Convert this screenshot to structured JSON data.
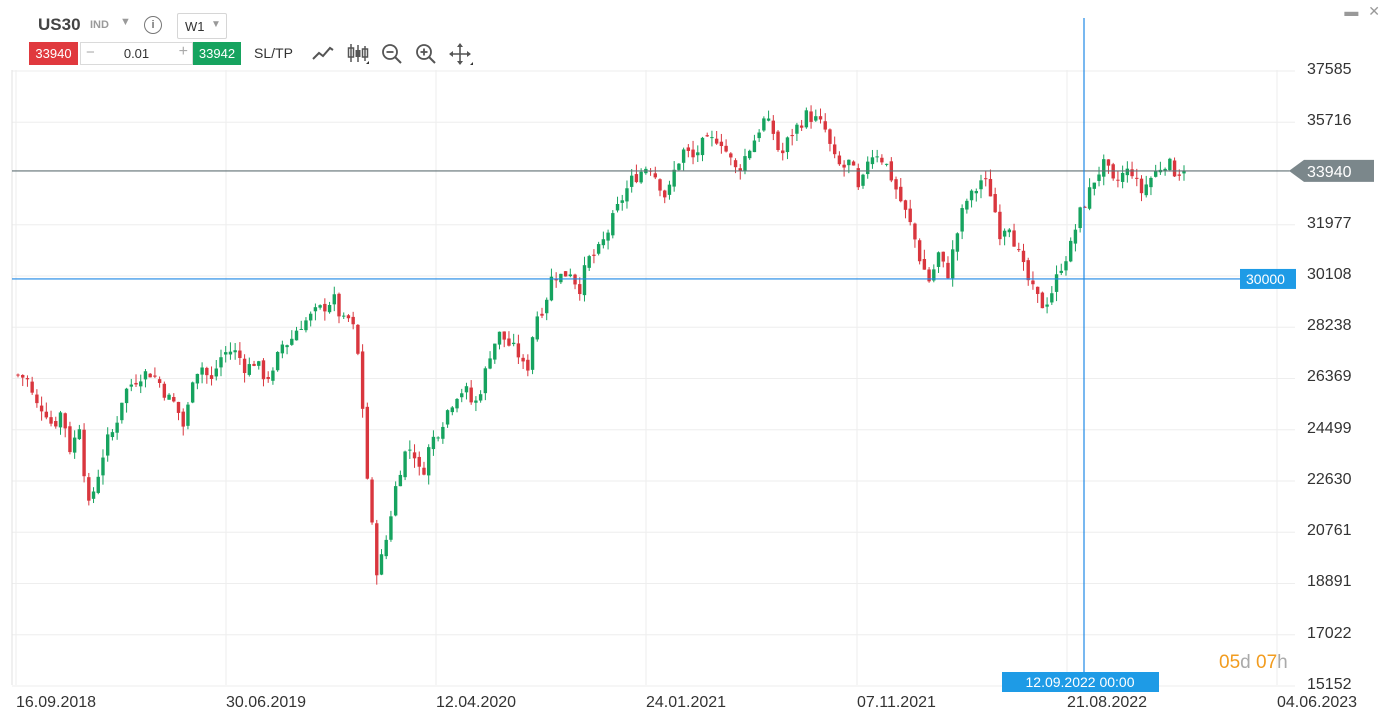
{
  "header": {
    "symbol": "US30",
    "category": "IND",
    "timeframe": "W1",
    "sell_price": "33940",
    "quantity": "0.01",
    "buy_price": "33942",
    "sltp_label": "SL/TP",
    "minus": "−",
    "plus": "+"
  },
  "price_axis": {
    "labels": [
      "37585",
      "35716",
      "31977",
      "30108",
      "28238",
      "26369",
      "24499",
      "22630",
      "20761",
      "18891",
      "17022",
      "15152"
    ],
    "current_price": "33940",
    "hline_price": "30000"
  },
  "date_axis": {
    "labels": [
      "16.09.2018",
      "30.06.2019",
      "12.04.2020",
      "24.01.2021",
      "07.11.2021",
      "21.08.2022",
      "04.06.2023"
    ],
    "crosshair_date": "12.09.2022 00:00"
  },
  "countdown": {
    "days": "05",
    "days_unit": "d",
    "hours": "07",
    "hours_unit": "h"
  },
  "colors": {
    "up": "#16a35f",
    "down": "#d9363e",
    "crosshair": "#1e88e5",
    "price_line": "#607075"
  },
  "chart_data": {
    "type": "candlestick",
    "x_range": [
      "16.09.2018",
      "04.06.2023"
    ],
    "ylim": [
      15152,
      37585
    ],
    "current_price": 33940,
    "horizontal_line": 30000,
    "crosshair_date": "12.09.2022 00:00",
    "close_path": [
      [
        26500,
        26369
      ],
      [
        25400,
        25300
      ],
      [
        24600,
        25200
      ],
      [
        23700,
        24700
      ],
      [
        21600,
        22700
      ],
      [
        24000,
        24500
      ],
      [
        25800,
        26200
      ],
      [
        26500,
        26600
      ],
      [
        26300,
        25700
      ],
      [
        25400,
        24500
      ],
      [
        26600,
        26800
      ],
      [
        26200,
        27100
      ],
      [
        27400,
        27300
      ],
      [
        26700,
        27000
      ],
      [
        26500,
        26400
      ],
      [
        27600,
        27700
      ],
      [
        28300,
        28500
      ],
      [
        28800,
        29000
      ],
      [
        29300,
        28400
      ],
      [
        28600,
        26800
      ],
      [
        22000,
        19200
      ],
      [
        20500,
        22300
      ],
      [
        23600,
        23900
      ],
      [
        22700,
        24000
      ],
      [
        24500,
        25200
      ],
      [
        25800,
        26000
      ],
      [
        25300,
        26200
      ],
      [
        27500,
        28000
      ],
      [
        27600,
        27300
      ],
      [
        26500,
        28600
      ],
      [
        29000,
        30200
      ],
      [
        30100,
        30300
      ],
      [
        29600,
        30700
      ],
      [
        30900,
        31500
      ],
      [
        32300,
        33000
      ],
      [
        33600,
        33900
      ],
      [
        34200,
        33600
      ],
      [
        32900,
        34100
      ],
      [
        34700,
        34400
      ],
      [
        34900,
        35000
      ],
      [
        35200,
        34500
      ],
      [
        33900,
        34500
      ],
      [
        35100,
        35800
      ],
      [
        35500,
        34400
      ],
      [
        35200,
        35600
      ],
      [
        36000,
        35800
      ],
      [
        35500,
        34400
      ],
      [
        34000,
        34300
      ],
      [
        33000,
        34500
      ],
      [
        34600,
        34200
      ],
      [
        33400,
        32600
      ],
      [
        31800,
        30600
      ],
      [
        29900,
        30900
      ],
      [
        30100,
        31500
      ],
      [
        32800,
        33100
      ],
      [
        33700,
        33100
      ],
      [
        31700,
        32100
      ],
      [
        31000,
        30100
      ],
      [
        29400,
        29000
      ],
      [
        29600,
        30500
      ],
      [
        31100,
        32300
      ],
      [
        33000,
        33800
      ],
      [
        34200,
        33400
      ],
      [
        33800,
        34000
      ],
      [
        33100,
        33600
      ],
      [
        34000,
        34300
      ],
      [
        33900,
        33940
      ]
    ]
  }
}
